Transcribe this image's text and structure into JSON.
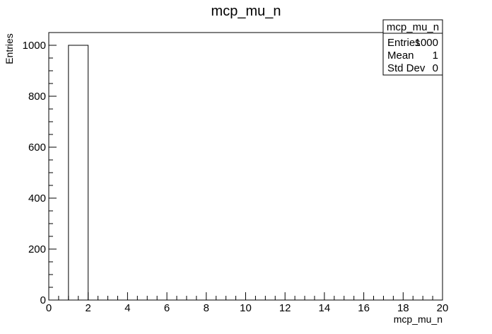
{
  "chart_data": {
    "type": "bar",
    "title": "mcp_mu_n",
    "xlabel": "mcp_mu_n",
    "ylabel": "Entries",
    "xlim": [
      0,
      20
    ],
    "ylim": [
      0,
      1050
    ],
    "bin_width": 1,
    "bins": [
      {
        "x_low": 1,
        "x_high": 2,
        "value": 1000
      }
    ],
    "x_ticks": [
      "0",
      "2",
      "4",
      "6",
      "8",
      "10",
      "12",
      "14",
      "16",
      "18",
      "20"
    ],
    "y_ticks": [
      "0",
      "200",
      "400",
      "600",
      "800",
      "1000"
    ],
    "stats_box": {
      "title": "mcp_mu_n",
      "rows": [
        {
          "label": "Entries",
          "value": "1000"
        },
        {
          "label": "Mean",
          "value": "1"
        },
        {
          "label": "Std Dev",
          "value": "0"
        }
      ]
    },
    "grid": false,
    "legend": "top-right"
  }
}
